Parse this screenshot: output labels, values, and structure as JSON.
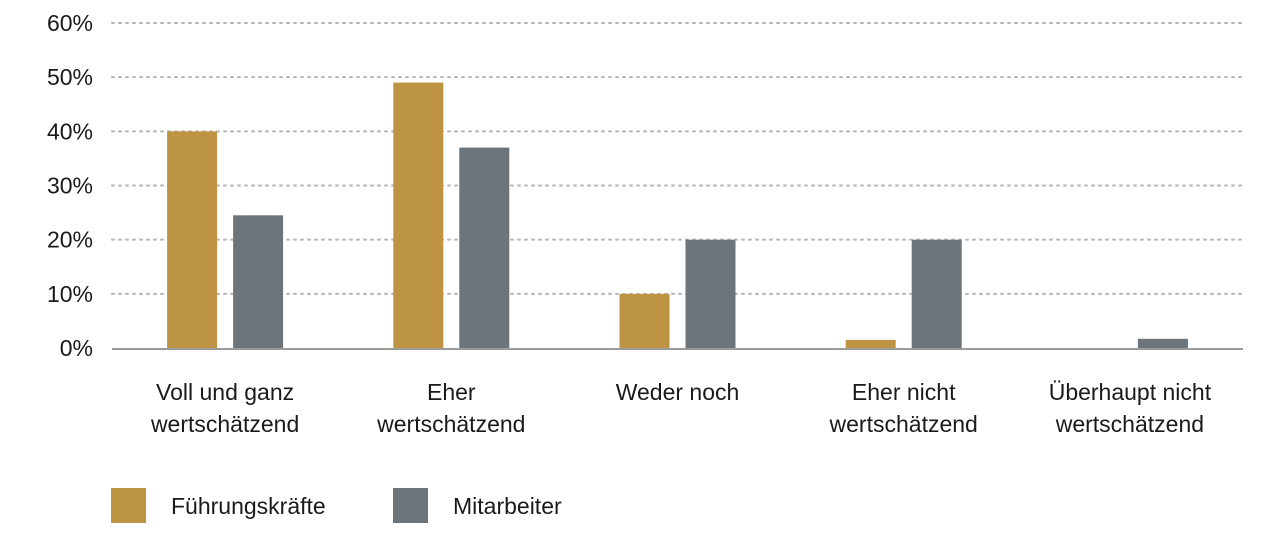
{
  "chart_data": {
    "type": "bar",
    "title": "",
    "xlabel": "",
    "ylabel": "",
    "ylim": [
      0,
      60
    ],
    "yticks": [
      0,
      10,
      20,
      30,
      40,
      50,
      60
    ],
    "y_tick_labels": [
      "0%",
      "10%",
      "20%",
      "30%",
      "40%",
      "50%",
      "60%"
    ],
    "grid": true,
    "legend_position": "bottom-left",
    "categories": [
      [
        "Voll und ganz",
        "wertschätzend"
      ],
      [
        "Eher",
        "wertschätzend"
      ],
      [
        "Weder noch"
      ],
      [
        "Eher nicht",
        "wertschätzend"
      ],
      [
        "Überhaupt nicht",
        "wertschätzend"
      ]
    ],
    "series": [
      {
        "name": "Führungskräfte",
        "color": "#bc9442",
        "values": [
          40,
          49,
          10,
          1.5,
          0
        ]
      },
      {
        "name": "Mitarbeiter",
        "color": "#6d757b",
        "values": [
          24.5,
          37,
          20,
          20,
          1.7
        ]
      }
    ],
    "colors": {
      "grid": "#b5b5b5",
      "axis": "#9a9a9a",
      "text": "#1a1a1a"
    }
  }
}
